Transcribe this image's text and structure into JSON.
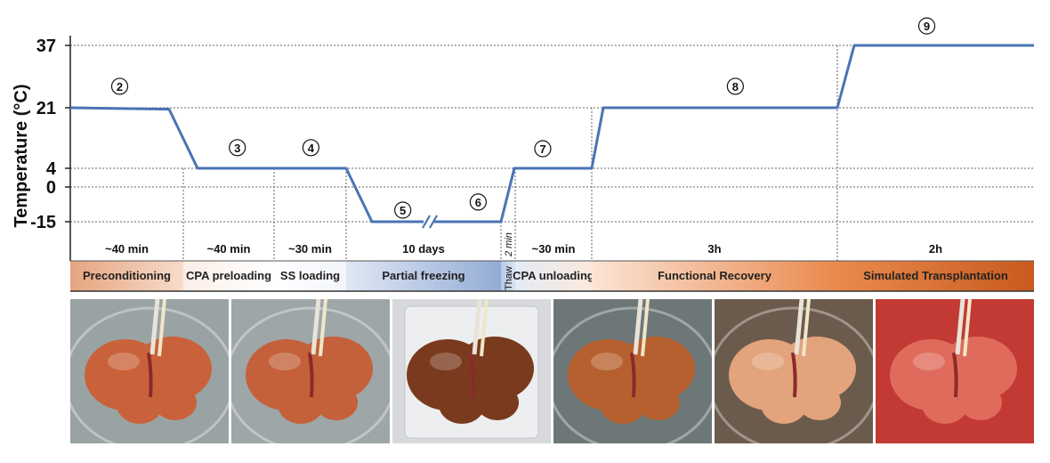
{
  "chart_data": {
    "type": "line",
    "title": "",
    "ylabel": "Temperature (°C)",
    "xlabel": "",
    "ylim": [
      -25,
      40
    ],
    "yticks": [
      37,
      21,
      4,
      0,
      -15
    ],
    "x_unit": "min",
    "series": [
      {
        "points": [
          {
            "x": 0,
            "y": 21
          },
          {
            "x": 40,
            "y": 20.6
          },
          {
            "x": 55,
            "y": 4
          },
          {
            "x": 80,
            "y": 4
          },
          {
            "x": 125,
            "y": 4
          },
          {
            "x": 140,
            "y": -15
          },
          {
            "x": 170,
            "y": -15
          },
          {
            "x": 195,
            "y": -15
          },
          {
            "x": 197,
            "y": 4
          },
          {
            "x": 225,
            "y": 4
          },
          {
            "x": 227,
            "y": 21
          },
          {
            "x": 305,
            "y": 21
          },
          {
            "x": 308,
            "y": 37
          },
          {
            "x": 365,
            "y": 37
          }
        ]
      }
    ],
    "axis_break": {
      "x": 170,
      "y": -15
    },
    "color": "#4a74b4",
    "grid": "dotted",
    "steps": [
      {
        "num": "2",
        "x": 20,
        "y": 26.5
      },
      {
        "num": "3",
        "x": 68,
        "y": 9.8
      },
      {
        "num": "4",
        "x": 103,
        "y": 9.8
      },
      {
        "num": "5",
        "x": 156,
        "y": -10
      },
      {
        "num": "6",
        "x": 187,
        "y": -6.5
      },
      {
        "num": "7",
        "x": 209,
        "y": 9.5
      },
      {
        "num": "8",
        "x": 271,
        "y": 26.5
      },
      {
        "num": "9",
        "x": 331,
        "y": 42
      }
    ],
    "phases": [
      {
        "start": 0,
        "end": 45,
        "duration": "~40 min",
        "label": "Preconditioning"
      },
      {
        "start": 45,
        "end": 80,
        "duration": "~40 min",
        "label": "CPA preloading"
      },
      {
        "start": 80,
        "end": 125,
        "duration": "~30 min",
        "label": "SS loading"
      },
      {
        "start": 125,
        "end": 195,
        "duration": "10 days",
        "label": "Partial freezing"
      },
      {
        "start": 195,
        "end": 200,
        "duration": "2 min",
        "label": "Thaw",
        "vertical": true
      },
      {
        "start": 200,
        "end": 225,
        "duration": "~30 min",
        "label": "CPA unloading"
      },
      {
        "start": 225,
        "end": 305,
        "duration": "3h",
        "label": "Functional Recovery"
      },
      {
        "start": 305,
        "end": 365,
        "duration": "2h",
        "label": "Simulated Transplantation"
      }
    ]
  },
  "photos": [
    {
      "name": "photo-preconditioning",
      "bg": "#9aa3a4",
      "organ": "#c9623a",
      "style": "bath"
    },
    {
      "name": "photo-cpa-preloading",
      "bg": "#9ea6a8",
      "organ": "#c4603a",
      "style": "bath"
    },
    {
      "name": "photo-partial-freezing",
      "bg": "#d7d9dc",
      "organ": "#7a3a1e",
      "style": "bag"
    },
    {
      "name": "photo-cpa-unloading",
      "bg": "#6e7778",
      "organ": "#b6602f",
      "style": "bath"
    },
    {
      "name": "photo-functional-recovery",
      "bg": "#6b5b4c",
      "organ": "#e3a37c",
      "style": "bath"
    },
    {
      "name": "photo-simulated-transplantation",
      "bg": "#c23a33",
      "organ": "#e06b5c",
      "style": "blood"
    }
  ]
}
